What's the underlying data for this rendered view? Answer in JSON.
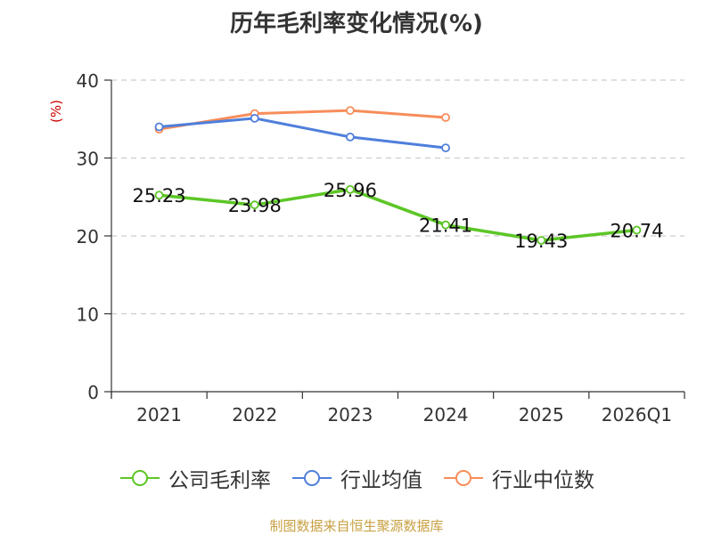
{
  "title": "历年毛利率变化情况(%)",
  "footer": "制图数据来自恒生聚源数据库",
  "chart_data": {
    "type": "line",
    "title": "历年毛利率变化情况(%)",
    "ylabel": "(%)",
    "ylabel_color": "#cc0000",
    "categories": [
      "2021",
      "2022",
      "2023",
      "2024",
      "2025",
      "2026Q1"
    ],
    "yticks": [
      "0",
      "10",
      "20",
      "30",
      "40"
    ],
    "ylim": [
      0,
      40
    ],
    "grid": "horizontal dashed",
    "legend_position": "bottom",
    "series": [
      {
        "name": "公司毛利率",
        "color": "#5cc626",
        "values": [
          25.23,
          23.98,
          25.96,
          21.41,
          19.43,
          20.74
        ],
        "labels": [
          "25.23",
          "23.98",
          "25.96",
          "21.41",
          "19.43",
          "20.74"
        ]
      },
      {
        "name": "行业均值",
        "color": "#4f7fdb",
        "values": [
          34.0,
          35.1,
          32.7,
          31.3,
          null,
          null
        ]
      },
      {
        "name": "行业中位数",
        "color": "#f88d5a",
        "values": [
          33.7,
          35.7,
          36.1,
          35.2,
          null,
          null
        ]
      }
    ]
  }
}
